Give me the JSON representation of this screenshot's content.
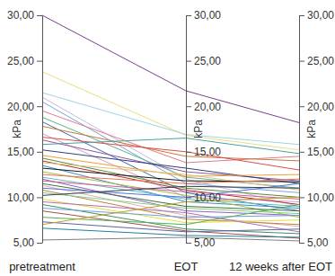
{
  "chart_data": {
    "type": "line",
    "categories": [
      "pretreatment",
      "EOT",
      "12 weeks after EOT"
    ],
    "ylabel": "kPa",
    "ylim": [
      5,
      30
    ],
    "yticks": [
      {
        "value": 5,
        "label": "5,00"
      },
      {
        "value": 10,
        "label": "10,00"
      },
      {
        "value": 15,
        "label": "15,00"
      },
      {
        "value": 20,
        "label": "20,00"
      },
      {
        "value": 25,
        "label": "25,00"
      },
      {
        "value": 30,
        "label": "30,00"
      }
    ],
    "series": [
      {
        "color": "#7b3f8f",
        "values": [
          30.0,
          21.7,
          18.2
        ]
      },
      {
        "color": "#e6e07a",
        "values": [
          23.8,
          16.8,
          15.2
        ]
      },
      {
        "color": "#9fd3e6",
        "values": [
          21.5,
          16.9,
          15.8
        ]
      },
      {
        "color": "#c9b6e0",
        "values": [
          21.0,
          12.0,
          9.0
        ]
      },
      {
        "color": "#7aa6d6",
        "values": [
          20.5,
          11.5,
          10.5
        ]
      },
      {
        "color": "#e07a8c",
        "values": [
          19.5,
          13.8,
          14.5
        ]
      },
      {
        "color": "#5bb38f",
        "values": [
          18.8,
          12.2,
          11.0
        ]
      },
      {
        "color": "#3e6fb0",
        "values": [
          18.3,
          10.5,
          8.5
        ]
      },
      {
        "color": "#c47a3a",
        "values": [
          17.8,
          14.5,
          14.0
        ]
      },
      {
        "color": "#d4a0c8",
        "values": [
          17.0,
          10.0,
          9.5
        ]
      },
      {
        "color": "#e04a4a",
        "values": [
          16.6,
          15.0,
          13.0
        ]
      },
      {
        "color": "#8a5a9c",
        "values": [
          16.3,
          12.8,
          11.8
        ]
      },
      {
        "color": "#4aa0a0",
        "values": [
          15.8,
          16.5,
          14.8
        ]
      },
      {
        "color": "#2e3e7a",
        "values": [
          15.2,
          13.2,
          11.5
        ]
      },
      {
        "color": "#f0a030",
        "values": [
          14.6,
          12.3,
          12.5
        ]
      },
      {
        "color": "#5a8a3a",
        "values": [
          14.3,
          11.0,
          10.0
        ]
      },
      {
        "color": "#b03030",
        "values": [
          14.0,
          10.8,
          9.2
        ]
      },
      {
        "color": "#e0c080",
        "values": [
          13.8,
          12.5,
          10.8
        ]
      },
      {
        "color": "#3a8ad0",
        "values": [
          13.5,
          9.5,
          8.8
        ]
      },
      {
        "color": "#1a1a1a",
        "values": [
          13.2,
          11.8,
          11.7
        ]
      },
      {
        "color": "#a0c040",
        "values": [
          12.8,
          10.2,
          7.8
        ]
      },
      {
        "color": "#f07050",
        "values": [
          12.5,
          11.5,
          12.0
        ]
      },
      {
        "color": "#60c0c0",
        "values": [
          12.2,
          9.8,
          9.0
        ]
      },
      {
        "color": "#9060c0",
        "values": [
          12.0,
          8.5,
          8.0
        ]
      },
      {
        "color": "#d06090",
        "values": [
          11.8,
          10.6,
          9.8
        ]
      },
      {
        "color": "#407040",
        "values": [
          11.5,
          9.0,
          8.5
        ]
      },
      {
        "color": "#e0b0b0",
        "values": [
          11.3,
          8.0,
          6.8
        ]
      },
      {
        "color": "#5070e0",
        "values": [
          11.0,
          10.0,
          11.5
        ]
      },
      {
        "color": "#c08040",
        "values": [
          10.8,
          7.6,
          7.0
        ]
      },
      {
        "color": "#80d080",
        "values": [
          10.5,
          8.8,
          8.2
        ]
      },
      {
        "color": "#304050",
        "values": [
          10.2,
          11.2,
          11.0
        ]
      },
      {
        "color": "#e0e040",
        "values": [
          9.8,
          7.2,
          7.5
        ]
      },
      {
        "color": "#b070b0",
        "values": [
          9.5,
          8.3,
          6.2
        ]
      },
      {
        "color": "#409060",
        "values": [
          9.2,
          6.5,
          6.0
        ]
      },
      {
        "color": "#70a0e0",
        "values": [
          8.8,
          7.8,
          8.0
        ]
      },
      {
        "color": "#a05050",
        "values": [
          8.5,
          6.3,
          5.5
        ]
      },
      {
        "color": "#50b050",
        "values": [
          7.8,
          7.0,
          9.2
        ]
      },
      {
        "color": "#6060a0",
        "values": [
          7.3,
          6.2,
          6.5
        ]
      },
      {
        "color": "#c0a020",
        "values": [
          7.0,
          9.5,
          10.0
        ]
      },
      {
        "color": "#2080a0",
        "values": [
          6.6,
          5.8,
          5.6
        ]
      },
      {
        "color": "#808080",
        "values": [
          5.3,
          5.6,
          5.2
        ]
      }
    ]
  }
}
